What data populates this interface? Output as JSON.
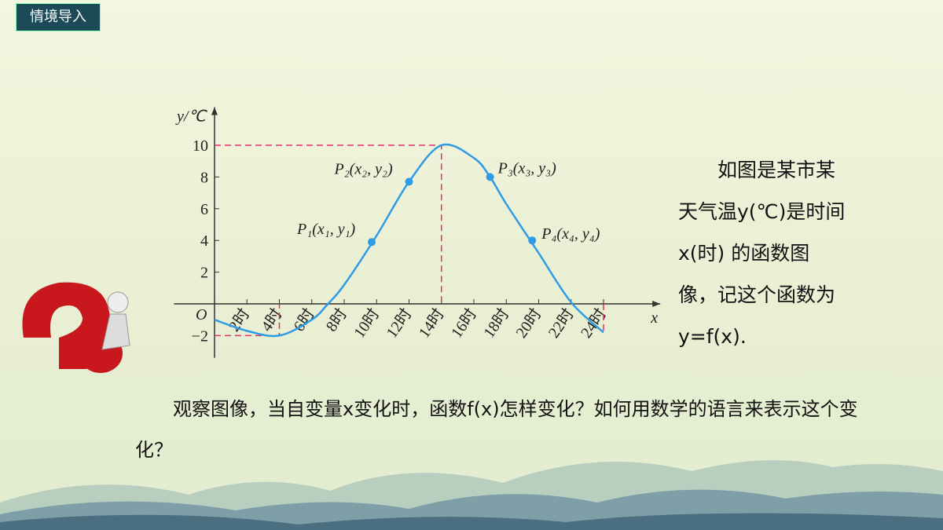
{
  "header": {
    "tag": "情境导入"
  },
  "chart_data": {
    "type": "line",
    "y_label": "y/℃",
    "x_label": "x",
    "origin_label": "O",
    "x": [
      0,
      2,
      4,
      6,
      7,
      8,
      10,
      12,
      14,
      16,
      17,
      18,
      20,
      22,
      24
    ],
    "y": [
      -1,
      -1.7,
      -2,
      -1,
      0,
      1.2,
      4.3,
      7.7,
      10,
      9.2,
      8,
      6.3,
      3.2,
      0.1,
      -1.8
    ],
    "color": "#2e9be6",
    "xlim": [
      -2.5,
      27.5
    ],
    "ylim": [
      -3.4,
      12.4
    ],
    "xticks": [
      {
        "value": 2,
        "label": "2时"
      },
      {
        "value": 4,
        "label": "4时"
      },
      {
        "value": 6,
        "label": "6时"
      },
      {
        "value": 8,
        "label": "8时"
      },
      {
        "value": 10,
        "label": "10时"
      },
      {
        "value": 12,
        "label": "12时"
      },
      {
        "value": 14,
        "label": "14时"
      },
      {
        "value": 16,
        "label": "16时"
      },
      {
        "value": 18,
        "label": "18时"
      },
      {
        "value": 20,
        "label": "20时"
      },
      {
        "value": 22,
        "label": "22时"
      },
      {
        "value": 24,
        "label": "24时"
      }
    ],
    "yticks": [
      {
        "value": -2,
        "label": "−2"
      },
      2,
      4,
      6,
      8,
      10
    ],
    "points": [
      {
        "label": "P₁(x₁, y₁)",
        "x": 9.7,
        "y": 3.9
      },
      {
        "label": "P₂(x₂, y₂)",
        "x": 12,
        "y": 7.7
      },
      {
        "label": "P₃(x₃, y₃)",
        "x": 17,
        "y": 8
      },
      {
        "label": "P₄(x₄, y₄)",
        "x": 19.6,
        "y": 4
      }
    ]
  },
  "side_text": "如图是某市某天气温y(℃)是时间x(时) 的函数图像，记这个函数为y=f(x).",
  "question": "观察图像，当自变量x变化时，函数f(x)怎样变化？如何用数学的语言来表示这个变化？"
}
